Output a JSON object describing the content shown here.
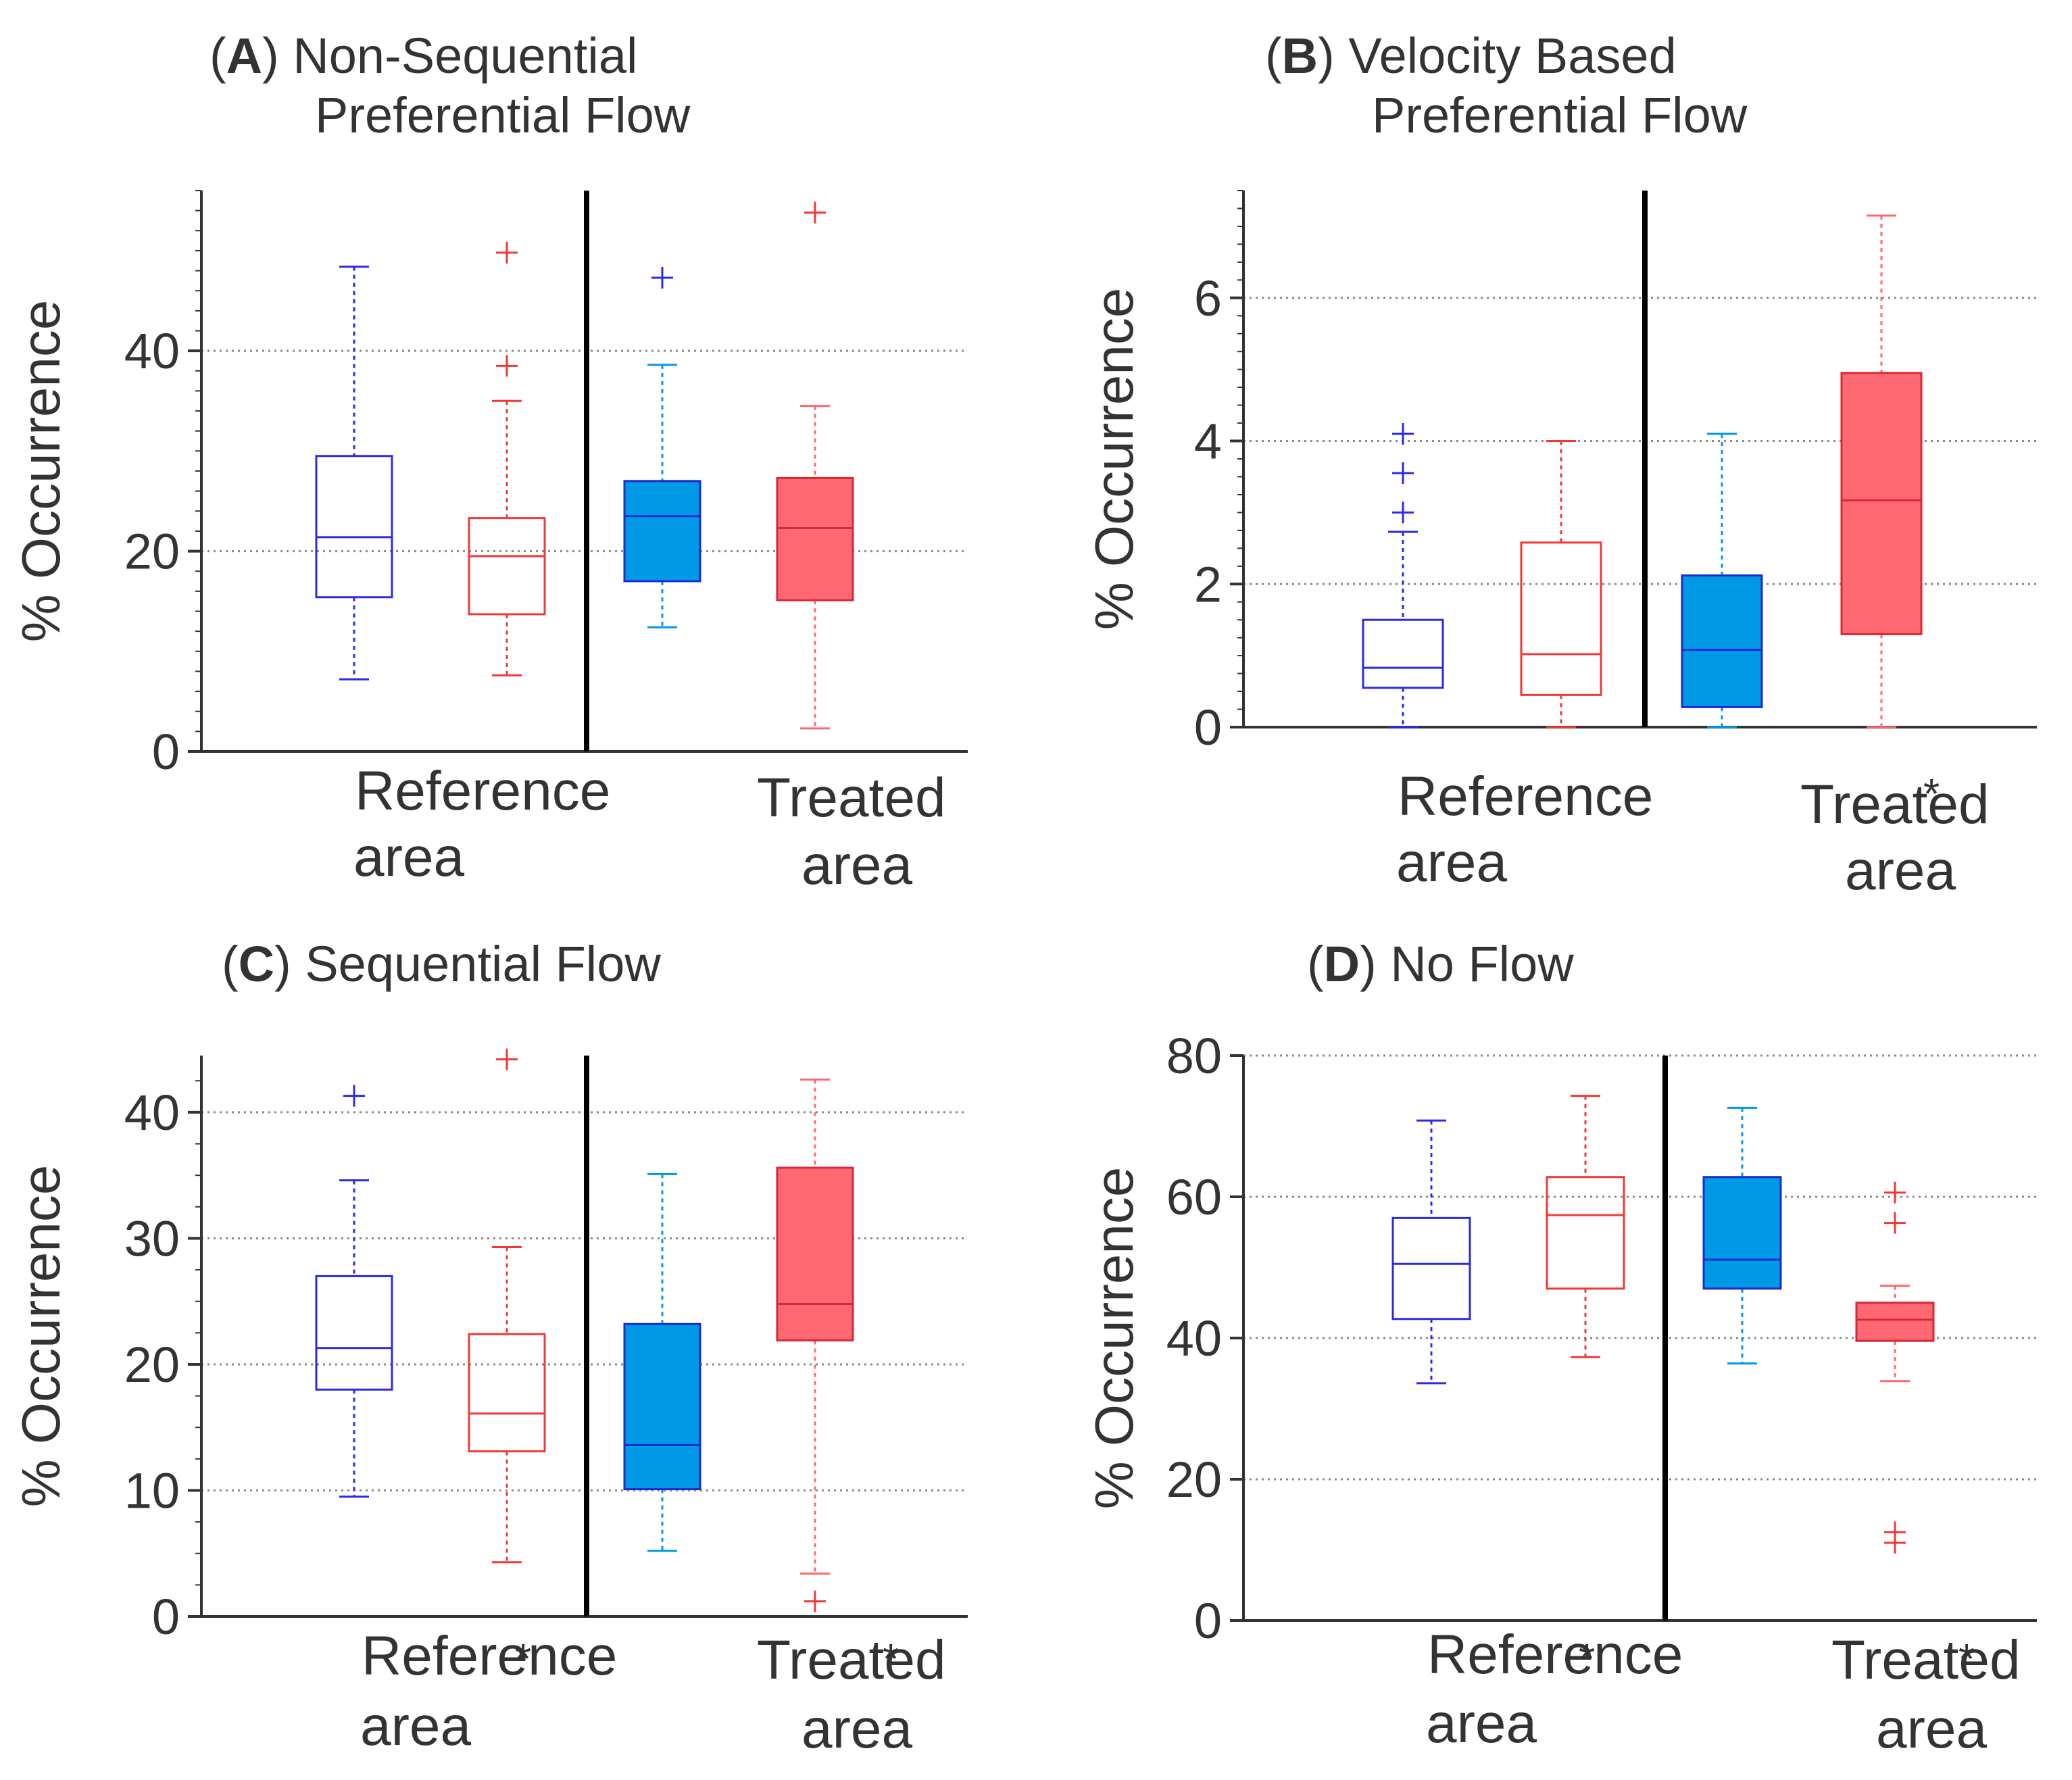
{
  "figure": {
    "y_axis_label": "% Occurrence",
    "colors": {
      "reference_open_blue": "#2A2AE8",
      "reference_open_red": "#F03838",
      "treated_blue_fill": "#0099E6",
      "treated_red_fill": "#FF6872",
      "axis": "#333333",
      "grid": "#888888"
    }
  },
  "chart_data": [
    {
      "type": "box",
      "panel_letter": "A",
      "title_line1": "Non-Sequential",
      "title_line2": "Preferential Flow",
      "ylabel": "% Occurrence",
      "ylim": [
        0,
        56
      ],
      "yticks": [
        0,
        20,
        40
      ],
      "ytick_labels": [
        "0",
        "20",
        "40"
      ],
      "minor_step": 2,
      "grid_values": [
        0,
        20,
        40
      ],
      "groups": [
        {
          "line1": "Reference",
          "line2": "area",
          "marker": ""
        },
        {
          "line1": "Treated",
          "line2": "area",
          "marker": ""
        }
      ],
      "series": [
        {
          "name": "Reference area, blue",
          "group": 0,
          "color": "#2A2AE8",
          "filled": false,
          "whisker_low": 7.2,
          "q1": 15.4,
          "median": 21.4,
          "q3": 29.5,
          "whisker_high": 48.4,
          "outliers": []
        },
        {
          "name": "Reference area, red",
          "group": 0,
          "color": "#F03838",
          "filled": false,
          "whisker_low": 7.6,
          "q1": 13.7,
          "median": 19.5,
          "q3": 23.3,
          "whisker_high": 35.0,
          "outliers": [
            38.5,
            49.8
          ]
        },
        {
          "name": "Treated area, blue",
          "group": 1,
          "color": "#0099E6",
          "filled": true,
          "whisker_low": 12.4,
          "q1": 17.0,
          "median": 23.5,
          "q3": 27.0,
          "whisker_high": 38.6,
          "outliers": [
            47.3
          ]
        },
        {
          "name": "Treated area, red",
          "group": 1,
          "color": "#FF6872",
          "filled": true,
          "whisker_low": 2.3,
          "q1": 15.1,
          "median": 22.3,
          "q3": 27.3,
          "whisker_high": 34.5,
          "outliers": [
            53.8
          ]
        }
      ]
    },
    {
      "type": "box",
      "panel_letter": "B",
      "title_line1": "Velocity Based",
      "title_line2": "Preferential Flow",
      "ylabel": "% Occurrence",
      "ylim": [
        0,
        7.5
      ],
      "yticks": [
        0,
        2,
        4,
        6
      ],
      "ytick_labels": [
        "0",
        "2",
        "4",
        "6"
      ],
      "minor_step": 0.25,
      "grid_values": [
        0,
        2,
        4,
        6
      ],
      "groups": [
        {
          "line1": "Reference",
          "line2": "area",
          "marker": ""
        },
        {
          "line1": "Treated",
          "line2": "area",
          "marker": "*"
        }
      ],
      "series": [
        {
          "name": "Reference area, blue",
          "group": 0,
          "color": "#2A2AE8",
          "filled": false,
          "whisker_low": 0.0,
          "q1": 0.55,
          "median": 0.83,
          "q3": 1.5,
          "whisker_high": 2.73,
          "outliers": [
            3.0,
            3.55,
            4.1
          ]
        },
        {
          "name": "Reference area, red",
          "group": 0,
          "color": "#F03838",
          "filled": false,
          "whisker_low": 0.0,
          "q1": 0.45,
          "median": 1.02,
          "q3": 2.58,
          "whisker_high": 4.0,
          "outliers": []
        },
        {
          "name": "Treated area, blue",
          "group": 1,
          "color": "#0099E6",
          "filled": true,
          "whisker_low": 0.0,
          "q1": 0.28,
          "median": 1.08,
          "q3": 2.12,
          "whisker_high": 4.1,
          "outliers": []
        },
        {
          "name": "Treated area, red",
          "group": 1,
          "color": "#FF6872",
          "filled": true,
          "whisker_low": 0.0,
          "q1": 1.3,
          "median": 3.17,
          "q3": 4.95,
          "whisker_high": 7.15,
          "outliers": []
        }
      ]
    },
    {
      "type": "box",
      "panel_letter": "C",
      "title_line1": "Sequential Flow",
      "title_line2": "",
      "ylabel": "% Occurrence",
      "ylim": [
        0,
        44.5
      ],
      "yticks": [
        0,
        10,
        20,
        30,
        40
      ],
      "ytick_labels": [
        "0",
        "10",
        "20",
        "30",
        "40"
      ],
      "minor_step": 2.5,
      "grid_values": [
        0,
        10,
        20,
        30,
        40
      ],
      "groups": [
        {
          "line1": "Reference",
          "line2": "area",
          "marker": "*"
        },
        {
          "line1": "Treated",
          "line2": "area",
          "marker": "*"
        }
      ],
      "series": [
        {
          "name": "Reference area, blue",
          "group": 0,
          "color": "#2A2AE8",
          "filled": false,
          "whisker_low": 9.5,
          "q1": 18.0,
          "median": 21.3,
          "q3": 27.0,
          "whisker_high": 34.6,
          "outliers": [
            41.3
          ]
        },
        {
          "name": "Reference area, red",
          "group": 0,
          "color": "#F03838",
          "filled": false,
          "whisker_low": 4.3,
          "q1": 13.1,
          "median": 16.1,
          "q3": 22.4,
          "whisker_high": 29.3,
          "outliers": [
            44.2
          ]
        },
        {
          "name": "Treated area, blue",
          "group": 1,
          "color": "#0099E6",
          "filled": true,
          "whisker_low": 5.2,
          "q1": 10.1,
          "median": 13.6,
          "q3": 23.2,
          "whisker_high": 35.1,
          "outliers": []
        },
        {
          "name": "Treated area, red",
          "group": 1,
          "color": "#FF6872",
          "filled": true,
          "whisker_low": 3.4,
          "q1": 21.9,
          "median": 24.8,
          "q3": 35.6,
          "whisker_high": 42.6,
          "outliers": [
            1.2
          ]
        }
      ]
    },
    {
      "type": "box",
      "panel_letter": "D",
      "title_line1": "No Flow",
      "title_line2": "",
      "ylabel": "% Occurrence",
      "ylim": [
        0,
        80
      ],
      "yticks": [
        0,
        20,
        40,
        60,
        80
      ],
      "ytick_labels": [
        "0",
        "20",
        "40",
        "60",
        "80"
      ],
      "minor_step": 0,
      "grid_values": [
        20,
        40,
        60,
        80
      ],
      "groups": [
        {
          "line1": "Reference",
          "line2": "area",
          "marker": "*"
        },
        {
          "line1": "Treated",
          "line2": "area",
          "marker": "*"
        }
      ],
      "series": [
        {
          "name": "Reference area, blue",
          "group": 0,
          "color": "#2A2AE8",
          "filled": false,
          "whisker_low": 33.6,
          "q1": 42.7,
          "median": 50.5,
          "q3": 57.0,
          "whisker_high": 70.8,
          "outliers": []
        },
        {
          "name": "Reference area, red",
          "group": 0,
          "color": "#F03838",
          "filled": false,
          "whisker_low": 37.3,
          "q1": 47.0,
          "median": 57.4,
          "q3": 62.8,
          "whisker_high": 74.3,
          "outliers": []
        },
        {
          "name": "Treated area, blue",
          "group": 1,
          "color": "#0099E6",
          "filled": true,
          "whisker_low": 36.4,
          "q1": 47.0,
          "median": 51.1,
          "q3": 62.8,
          "whisker_high": 72.6,
          "outliers": []
        },
        {
          "name": "Treated area, red",
          "group": 1,
          "color": "#FF6872",
          "filled": true,
          "whisker_low": 33.9,
          "q1": 39.6,
          "median": 42.6,
          "q3": 45.0,
          "whisker_high": 47.4,
          "outliers": [
            11.0,
            12.5,
            56.3,
            60.6
          ]
        }
      ]
    }
  ]
}
